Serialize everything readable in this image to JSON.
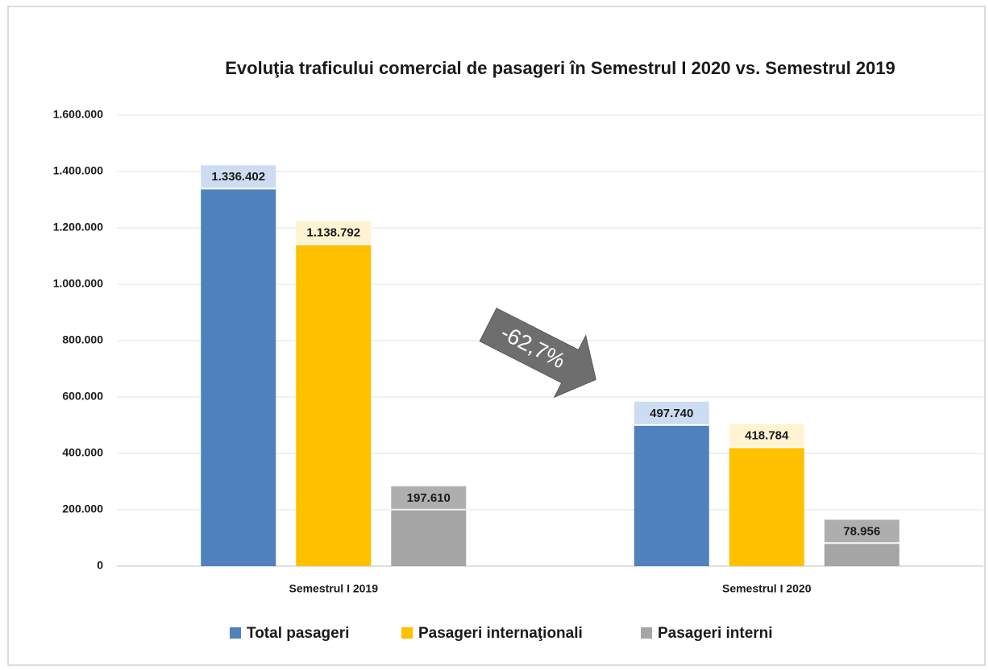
{
  "chart_data": {
    "type": "bar",
    "title": "Evoluţia traficului comercial de pasageri în Semestrul I 2020 vs. Semestrul 2019",
    "categories": [
      "Semestrul I 2019",
      "Semestrul I 2020"
    ],
    "series": [
      {
        "name": "Total pasageri",
        "color": "#4f81bd",
        "label_color": "#c6d9f1",
        "values": [
          1336402,
          497740
        ],
        "value_labels": [
          "1.336.402",
          "497.740"
        ]
      },
      {
        "name": "Pasageri internaţionali",
        "color": "#ffc000",
        "label_color": "#fff2cc",
        "values": [
          1138792,
          418784
        ],
        "value_labels": [
          "1.138.792",
          "418.784"
        ]
      },
      {
        "name": "Pasageri interni",
        "color": "#a5a5a5",
        "label_color": "#a5a5a5",
        "values": [
          197610,
          78956
        ],
        "value_labels": [
          "197.610",
          "78.956"
        ]
      }
    ],
    "ylim": [
      0,
      1600000
    ],
    "yticks": [
      0,
      {
        "value": 200000,
        "label": "200.000"
      },
      {
        "value": 400000,
        "label": "400.000"
      },
      {
        "value": 600000,
        "label": "600.000"
      },
      {
        "value": 800000,
        "label": "800.000"
      },
      {
        "value": 1000000,
        "label": "1.000.000"
      },
      {
        "value": 1200000,
        "label": "1.200.000"
      },
      {
        "value": 1400000,
        "label": "1.400.000"
      },
      {
        "value": 1600000,
        "label": "1.600.000"
      }
    ],
    "grid": true,
    "legend": "bottom",
    "annotation": "-62,7%"
  }
}
